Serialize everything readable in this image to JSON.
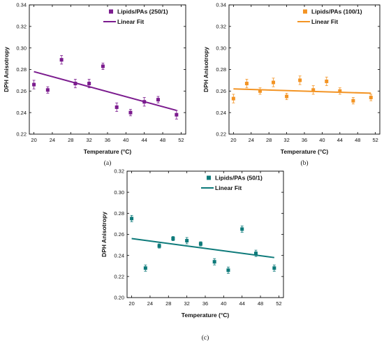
{
  "chart_data": [
    {
      "type": "scatter",
      "caption": "(a)",
      "xlabel": "Temperature (°C)",
      "ylabel": "DPH Anisotropy",
      "xlim": [
        19,
        53
      ],
      "ylim": [
        0.22,
        0.34
      ],
      "xticks": [
        20,
        24,
        28,
        32,
        36,
        40,
        44,
        48,
        52
      ],
      "yticks": [
        0.22,
        0.24,
        0.26,
        0.28,
        0.3,
        0.32,
        0.34
      ],
      "legend_position": "top-right",
      "color": "#7b1b8e",
      "marker_label": "Lipids/PAs (250/1)",
      "fit_label": "Linear Fit",
      "x": [
        20,
        23,
        26,
        29,
        32,
        35,
        38,
        41,
        44,
        47,
        51
      ],
      "y": [
        0.266,
        0.261,
        0.289,
        0.267,
        0.267,
        0.283,
        0.245,
        0.24,
        0.25,
        0.252,
        0.238
      ],
      "err": [
        0.004,
        0.003,
        0.004,
        0.004,
        0.004,
        0.003,
        0.004,
        0.003,
        0.004,
        0.003,
        0.004
      ],
      "fit": [
        [
          20,
          0.278
        ],
        [
          51,
          0.242
        ]
      ]
    },
    {
      "type": "scatter",
      "caption": "(b)",
      "xlabel": "Temperature (°C)",
      "ylabel": "DPH Anisotropy",
      "xlim": [
        19,
        53
      ],
      "ylim": [
        0.22,
        0.34
      ],
      "xticks": [
        20,
        24,
        28,
        32,
        36,
        40,
        44,
        48,
        52
      ],
      "yticks": [
        0.22,
        0.24,
        0.26,
        0.28,
        0.3,
        0.32,
        0.34
      ],
      "legend_position": "top-right",
      "color": "#f39424",
      "marker_label": "Lipids/PAs (100/1)",
      "fit_label": "Linear Fit",
      "x": [
        20,
        23,
        26,
        29,
        32,
        35,
        38,
        41,
        44,
        47,
        51
      ],
      "y": [
        0.253,
        0.267,
        0.26,
        0.268,
        0.255,
        0.27,
        0.261,
        0.269,
        0.26,
        0.251,
        0.254
      ],
      "err": [
        0.004,
        0.004,
        0.003,
        0.004,
        0.003,
        0.004,
        0.004,
        0.004,
        0.003,
        0.003,
        0.003
      ],
      "fit": [
        [
          20,
          0.262
        ],
        [
          51,
          0.258
        ]
      ]
    },
    {
      "type": "scatter",
      "caption": "(c)",
      "xlabel": "Temperature (°C)",
      "ylabel": "DPH Anisotropy",
      "xlim": [
        19,
        53
      ],
      "ylim": [
        0.2,
        0.32
      ],
      "xticks": [
        20,
        24,
        28,
        32,
        36,
        40,
        44,
        48,
        52
      ],
      "yticks": [
        0.2,
        0.22,
        0.24,
        0.26,
        0.28,
        0.3,
        0.32
      ],
      "legend_position": "top-right",
      "color": "#0d7a7a",
      "marker_label": "Lipids/PAs (50/1)",
      "fit_label": "Linear Fit",
      "x": [
        20,
        23,
        26,
        29,
        32,
        35,
        38,
        41,
        44,
        47,
        51
      ],
      "y": [
        0.275,
        0.228,
        0.249,
        0.256,
        0.254,
        0.251,
        0.234,
        0.226,
        0.265,
        0.242,
        0.228
      ],
      "err": [
        0.003,
        0.003,
        0.002,
        0.002,
        0.003,
        0.002,
        0.003,
        0.003,
        0.003,
        0.003,
        0.003
      ],
      "fit": [
        [
          20,
          0.256
        ],
        [
          51,
          0.238
        ]
      ]
    }
  ]
}
